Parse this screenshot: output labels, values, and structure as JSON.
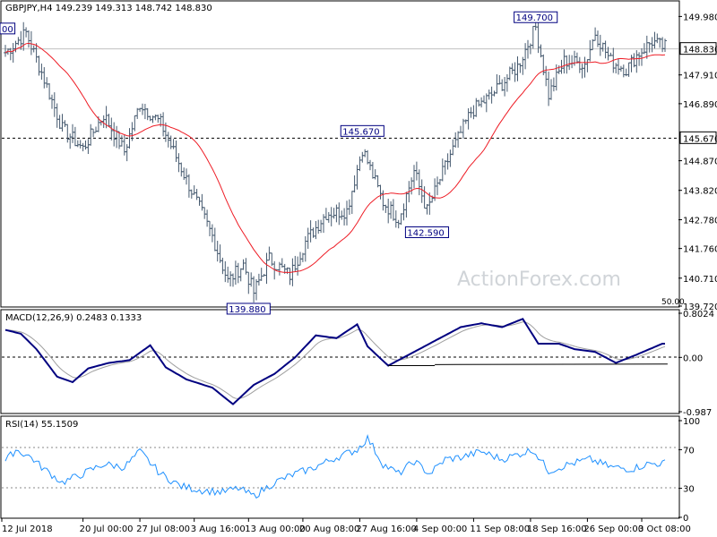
{
  "chart_data": [
    {
      "type": "ohlc",
      "title": "GBPJPY,H4 149.239 149.313 148.742 148.830",
      "ylim": [
        139.72,
        150.5
      ],
      "yticks": [
        {
          "label": "149.980",
          "value": 149.98
        },
        {
          "label": "147.910",
          "value": 147.91
        },
        {
          "label": "146.890",
          "value": 146.89
        },
        {
          "label": "144.870",
          "value": 144.87
        },
        {
          "label": "143.820",
          "value": 143.82
        },
        {
          "label": "142.780",
          "value": 142.78
        },
        {
          "label": "141.760",
          "value": 141.76
        },
        {
          "label": "140.710",
          "value": 140.71
        },
        {
          "label": "139.720",
          "value": 139.72
        }
      ],
      "current_price": {
        "label": "148.830",
        "value": 148.83
      },
      "level_line": {
        "label": "145.670",
        "value": 145.67
      },
      "ma_label": "50.00",
      "annotations": [
        {
          "label": "149.700",
          "value": 149.7,
          "bar": 205,
          "side": "high"
        },
        {
          "label": "145.670",
          "value": 145.67,
          "bar": 138,
          "side": "high"
        },
        {
          "label": "142.590",
          "value": 142.59,
          "bar": 163,
          "side": "low"
        },
        {
          "label": "139.880",
          "value": 139.88,
          "bar": 94,
          "side": "low"
        },
        {
          "label": "00",
          "value": 149.3,
          "bar": 0,
          "side": "high"
        }
      ],
      "waypoints": [
        [
          0,
          148.7
        ],
        [
          8,
          149.4
        ],
        [
          14,
          148.0
        ],
        [
          22,
          146.0
        ],
        [
          30,
          145.3
        ],
        [
          38,
          146.5
        ],
        [
          46,
          145.2
        ],
        [
          52,
          146.9
        ],
        [
          60,
          146.2
        ],
        [
          70,
          144.2
        ],
        [
          80,
          142.2
        ],
        [
          86,
          140.6
        ],
        [
          92,
          141.2
        ],
        [
          96,
          140.2
        ],
        [
          102,
          141.4
        ],
        [
          110,
          140.8
        ],
        [
          116,
          142.0
        ],
        [
          124,
          143.0
        ],
        [
          132,
          143.1
        ],
        [
          138,
          145.3
        ],
        [
          146,
          143.4
        ],
        [
          152,
          142.8
        ],
        [
          158,
          144.5
        ],
        [
          163,
          143.1
        ],
        [
          172,
          145.1
        ],
        [
          180,
          146.6
        ],
        [
          188,
          147.2
        ],
        [
          198,
          148.2
        ],
        [
          205,
          149.6
        ],
        [
          210,
          147.2
        ],
        [
          216,
          148.4
        ],
        [
          224,
          148.3
        ],
        [
          228,
          149.4
        ],
        [
          234,
          148.4
        ],
        [
          240,
          148.1
        ],
        [
          244,
          148.6
        ],
        [
          250,
          149.1
        ],
        [
          254,
          148.9
        ]
      ],
      "series": [
        {
          "name": "Price",
          "color": "#465a6f"
        },
        {
          "name": "MA",
          "color": "#ee1c25"
        }
      ]
    },
    {
      "type": "line",
      "title": "MACD(12,26,9) 0.2483 0.1333",
      "ylim": [
        -0.987,
        0.8024
      ],
      "yticks": [
        {
          "label": "0.8024",
          "value": 0.8024
        },
        {
          "label": "0.00",
          "value": 0.0
        },
        {
          "label": "-0.987",
          "value": -0.987
        }
      ],
      "waypoints": [
        [
          0,
          0.5
        ],
        [
          6,
          0.43
        ],
        [
          12,
          0.15
        ],
        [
          20,
          -0.35
        ],
        [
          26,
          -0.45
        ],
        [
          32,
          -0.2
        ],
        [
          40,
          -0.1
        ],
        [
          48,
          -0.05
        ],
        [
          56,
          0.22
        ],
        [
          62,
          -0.18
        ],
        [
          70,
          -0.4
        ],
        [
          80,
          -0.55
        ],
        [
          88,
          -0.85
        ],
        [
          96,
          -0.5
        ],
        [
          104,
          -0.3
        ],
        [
          112,
          0.0
        ],
        [
          120,
          0.4
        ],
        [
          128,
          0.35
        ],
        [
          136,
          0.6
        ],
        [
          140,
          0.2
        ],
        [
          148,
          -0.15
        ],
        [
          158,
          0.1
        ],
        [
          168,
          0.35
        ],
        [
          176,
          0.55
        ],
        [
          184,
          0.62
        ],
        [
          192,
          0.55
        ],
        [
          200,
          0.7
        ],
        [
          206,
          0.25
        ],
        [
          214,
          0.25
        ],
        [
          220,
          0.15
        ],
        [
          228,
          0.1
        ],
        [
          236,
          -0.1
        ],
        [
          244,
          0.05
        ],
        [
          254,
          0.25
        ]
      ],
      "trendlines": [
        {
          "from": [
            148,
            -0.15
          ],
          "to": [
            166,
            -0.15
          ]
        },
        {
          "from": [
            166,
            -0.13
          ],
          "to": [
            256,
            -0.12
          ]
        }
      ],
      "series": [
        {
          "name": "MACD",
          "color": "#000080"
        },
        {
          "name": "Signal",
          "color": "#a0a0a0"
        }
      ]
    },
    {
      "type": "line",
      "title": "RSI(14) 55.1509",
      "ylim": [
        0,
        100
      ],
      "yticks": [
        {
          "label": "100",
          "value": 100
        },
        {
          "label": "70",
          "value": 70
        },
        {
          "label": "30",
          "value": 30
        },
        {
          "label": "0",
          "value": 0
        }
      ],
      "levels": [
        70,
        30
      ],
      "waypoints": [
        [
          0,
          58
        ],
        [
          4,
          70
        ],
        [
          10,
          62
        ],
        [
          14,
          52
        ],
        [
          22,
          36
        ],
        [
          30,
          45
        ],
        [
          38,
          55
        ],
        [
          46,
          52
        ],
        [
          52,
          68
        ],
        [
          60,
          45
        ],
        [
          68,
          32
        ],
        [
          76,
          28
        ],
        [
          84,
          26
        ],
        [
          90,
          30
        ],
        [
          96,
          22
        ],
        [
          104,
          36
        ],
        [
          112,
          45
        ],
        [
          118,
          50
        ],
        [
          128,
          62
        ],
        [
          136,
          70
        ],
        [
          140,
          82
        ],
        [
          146,
          55
        ],
        [
          152,
          45
        ],
        [
          158,
          58
        ],
        [
          164,
          45
        ],
        [
          170,
          60
        ],
        [
          176,
          62
        ],
        [
          184,
          68
        ],
        [
          192,
          60
        ],
        [
          198,
          65
        ],
        [
          204,
          70
        ],
        [
          210,
          48
        ],
        [
          218,
          55
        ],
        [
          226,
          60
        ],
        [
          234,
          52
        ],
        [
          242,
          50
        ],
        [
          248,
          55
        ],
        [
          254,
          56
        ]
      ],
      "series": [
        {
          "name": "RSI",
          "color": "#1e90ff"
        }
      ]
    }
  ],
  "time_axis": {
    "labels": [
      {
        "label": "12 Jul 2018",
        "bar": 0
      },
      {
        "label": "20 Jul 00:00",
        "bar": 30
      },
      {
        "label": "27 Jul 08:00",
        "bar": 52
      },
      {
        "label": "3 Aug 16:00",
        "bar": 73
      },
      {
        "label": "13 Aug 00:00",
        "bar": 94
      },
      {
        "label": "20 Aug 08:00",
        "bar": 115
      },
      {
        "label": "27 Aug 16:00",
        "bar": 137
      },
      {
        "label": "4 Sep 00:00",
        "bar": 159
      },
      {
        "label": "11 Sep 08:00",
        "bar": 181
      },
      {
        "label": "18 Sep 16:00",
        "bar": 203
      },
      {
        "label": "26 Sep 00:00",
        "bar": 225
      },
      {
        "label": "3 Oct 08:00",
        "bar": 246
      }
    ],
    "total_bars": 256
  },
  "watermark": "ActionForex.com",
  "colors": {
    "price": "#465a6f",
    "ma": "#ee1c25",
    "macd": "#000080",
    "signal": "#a0a0a0",
    "rsi": "#1e90ff",
    "watermark": "#d0d4d8"
  }
}
